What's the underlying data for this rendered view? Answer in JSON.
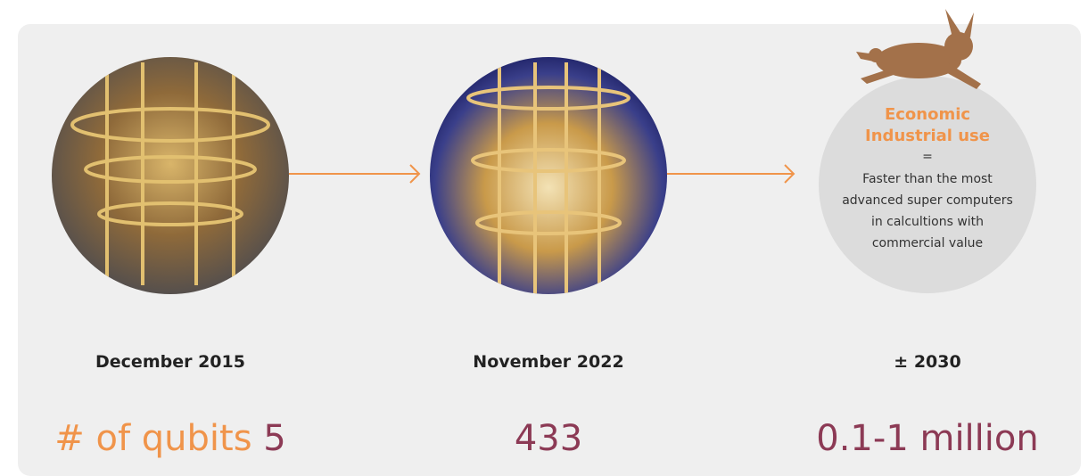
{
  "qubits_label": "# of qubits",
  "milestones": [
    {
      "date": "December 2015",
      "qubits": 5
    },
    {
      "date": "November 2022",
      "qubits": 433
    },
    {
      "date": "± 2030",
      "qubits": "0.1-1 million"
    }
  ],
  "future": {
    "title_lines": [
      "Economic",
      "Industrial use"
    ],
    "equals": "=",
    "description_lines": [
      "Faster than the most",
      "advanced super computers",
      "in calcultions with",
      "commercial value"
    ]
  }
}
